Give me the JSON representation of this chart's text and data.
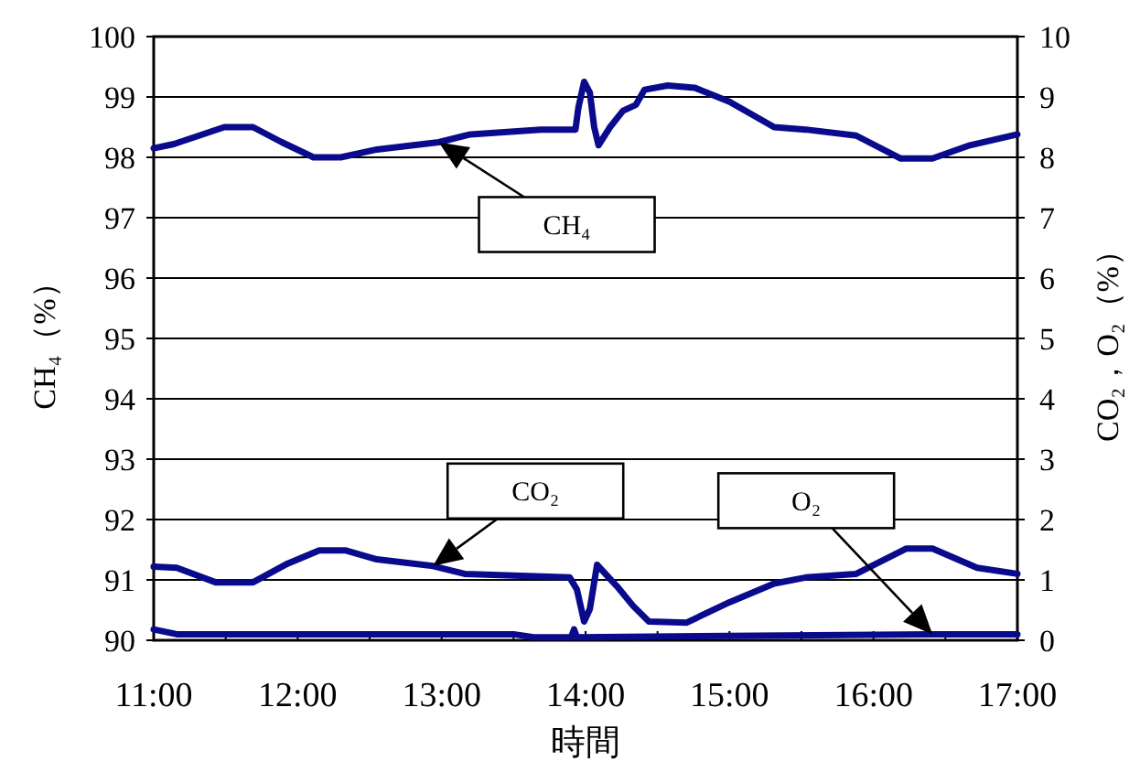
{
  "chart_data": {
    "type": "line",
    "xlabel": "時間",
    "ylabel": "CH₄（%）",
    "y2label": "CO₂，O₂（%）",
    "xlim": [
      11,
      17
    ],
    "xticks": [
      {
        "value": 11,
        "label": "11:00"
      },
      {
        "value": 11.5,
        "label": null
      },
      {
        "value": 12,
        "label": "12:00"
      },
      {
        "value": 12.5,
        "label": null
      },
      {
        "value": 13,
        "label": "13:00"
      },
      {
        "value": 13.5,
        "label": null
      },
      {
        "value": 14,
        "label": "14:00"
      },
      {
        "value": 14.5,
        "label": null
      },
      {
        "value": 15,
        "label": "15:00"
      },
      {
        "value": 15.5,
        "label": null
      },
      {
        "value": 16,
        "label": "16:00"
      },
      {
        "value": 16.5,
        "label": null
      },
      {
        "value": 17,
        "label": "17:00"
      }
    ],
    "ylim": [
      90,
      100
    ],
    "yticks": [
      90,
      91,
      92,
      93,
      94,
      95,
      96,
      97,
      98,
      99,
      100
    ],
    "y2lim": [
      0,
      10
    ],
    "y2ticks": [
      0,
      1,
      2,
      3,
      4,
      5,
      6,
      7,
      8,
      9,
      10
    ],
    "grid": "y",
    "marker": "none",
    "line_style": "solid",
    "series": [
      {
        "name": "CH₄",
        "color": "#0a0a8c",
        "x": [
          11.0,
          11.14,
          11.49,
          11.69,
          11.89,
          12.11,
          12.3,
          12.55,
          12.98,
          13.2,
          13.69,
          13.93,
          13.95,
          13.99,
          14.03,
          14.06,
          14.09,
          14.17,
          14.26,
          14.35,
          14.41,
          14.57,
          14.76,
          15.0,
          15.31,
          15.53,
          15.88,
          16.19,
          16.41,
          16.67,
          17.0
        ],
        "values": [
          98.15,
          98.22,
          98.5,
          98.5,
          98.25,
          98.0,
          98.0,
          98.13,
          98.25,
          98.38,
          98.46,
          98.46,
          98.82,
          99.25,
          99.07,
          98.5,
          98.2,
          98.5,
          98.77,
          98.87,
          99.12,
          99.19,
          99.15,
          98.92,
          98.5,
          98.46,
          98.36,
          97.98,
          97.98,
          98.2,
          98.38
        ]
      },
      {
        "name": "CO₂",
        "color": "#0a0a8c",
        "axis": "y2",
        "x": [
          11.0,
          11.16,
          11.43,
          11.69,
          11.93,
          12.15,
          12.33,
          12.55,
          12.94,
          13.16,
          13.89,
          13.94,
          13.99,
          14.03,
          14.08,
          14.22,
          14.33,
          14.44,
          14.7,
          15.0,
          15.31,
          15.53,
          15.88,
          16.23,
          16.41,
          16.72,
          17.0
        ],
        "values": [
          1.22,
          1.2,
          0.96,
          0.96,
          1.27,
          1.49,
          1.49,
          1.34,
          1.23,
          1.1,
          1.04,
          0.84,
          0.31,
          0.52,
          1.25,
          0.89,
          0.57,
          0.31,
          0.29,
          0.63,
          0.94,
          1.04,
          1.1,
          1.52,
          1.52,
          1.2,
          1.1
        ]
      },
      {
        "name": "O₂",
        "color": "#0a0a8c",
        "axis": "y2",
        "x": [
          11.0,
          11.16,
          13.5,
          13.64,
          13.9,
          13.92,
          13.94,
          16.41,
          17.0
        ],
        "values": [
          0.18,
          0.1,
          0.1,
          0.05,
          0.05,
          0.18,
          0.05,
          0.1,
          0.1
        ]
      }
    ]
  }
}
